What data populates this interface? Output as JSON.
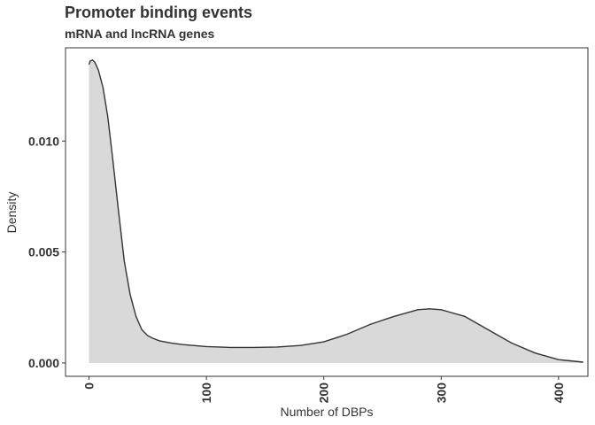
{
  "chart_data": {
    "type": "area",
    "title": "Promoter binding events",
    "subtitle": "mRNA and lncRNA genes",
    "xlabel": "Number of DBPs",
    "ylabel": "Density",
    "xlim": [
      -20,
      425
    ],
    "ylim": [
      -0.0006,
      0.0142
    ],
    "x_ticks": [
      0,
      100,
      200,
      300,
      400
    ],
    "y_ticks": [
      0.0,
      0.005,
      0.01
    ],
    "y_tick_labels": [
      "0.000",
      "0.005",
      "0.010"
    ],
    "grid": false,
    "legend": "none",
    "fill_color": "#d9d9d9",
    "line_color": "#333333",
    "x": [
      0,
      1,
      3,
      5,
      8,
      12,
      16,
      20,
      25,
      30,
      35,
      40,
      45,
      50,
      55,
      60,
      70,
      80,
      100,
      120,
      140,
      160,
      180,
      200,
      220,
      240,
      260,
      280,
      290,
      300,
      320,
      340,
      360,
      380,
      400,
      421
    ],
    "y": [
      0.01345,
      0.0136,
      0.01365,
      0.01355,
      0.0132,
      0.0124,
      0.0111,
      0.0093,
      0.0069,
      0.0046,
      0.0031,
      0.0021,
      0.0015,
      0.00123,
      0.0011,
      0.001,
      0.0009,
      0.00083,
      0.00074,
      0.0007,
      0.0007,
      0.00072,
      0.00079,
      0.00095,
      0.0013,
      0.00175,
      0.0021,
      0.0024,
      0.00244,
      0.0024,
      0.0021,
      0.0015,
      0.0009,
      0.00045,
      0.00015,
      4e-05
    ]
  }
}
